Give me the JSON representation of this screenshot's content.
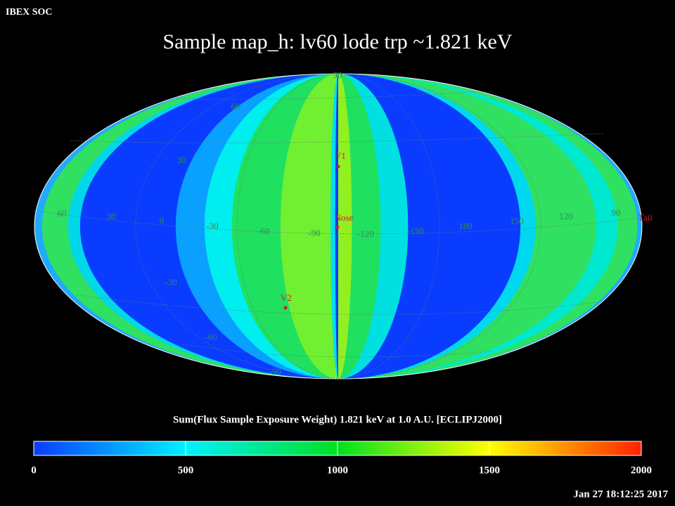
{
  "header": {
    "org": "IBEX SOC",
    "title": "Sample map_h: lv60 lode trp ~1.821 keV"
  },
  "map": {
    "longitude_labels": [
      "60",
      "30",
      "0",
      "-30",
      "-60",
      "-90",
      "-120",
      "-150",
      "180",
      "150",
      "120",
      "90"
    ],
    "latitude_labels": [
      "90",
      "60",
      "30",
      "-30",
      "-60",
      "-90"
    ],
    "markers": [
      "V1",
      "Nose",
      "V2",
      "Tail"
    ]
  },
  "colorbar": {
    "label": "Sum(Flux Sample Exposure Weight)  1.821 keV at 1.0 A.U. [ECLIPJ2000]",
    "lim": [
      0,
      2000
    ],
    "ticks": [
      0,
      500,
      1000,
      1500,
      2000
    ]
  },
  "footer": {
    "timestamp": "Jan 27 18:12:25 2017"
  }
}
